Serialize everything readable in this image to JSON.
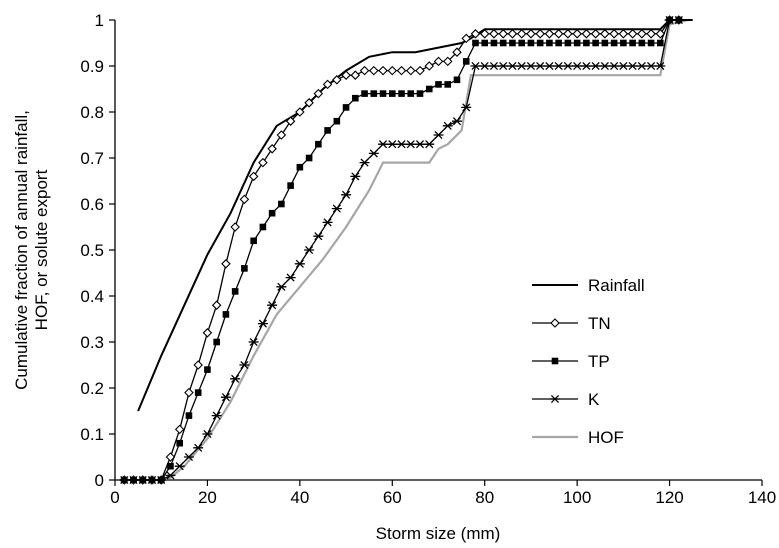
{
  "chart_data": {
    "type": "line",
    "xlabel": "Storm size (mm)",
    "ylabel_lines": [
      "Cumulative fraction of annual rainfall,",
      "HOF, or solute export"
    ],
    "xlim": [
      0,
      140
    ],
    "ylim": [
      0,
      1
    ],
    "xticks": [
      0,
      20,
      40,
      60,
      80,
      100,
      120,
      140
    ],
    "yticks": [
      0,
      0.1,
      0.2,
      0.3,
      0.4,
      0.5,
      0.6,
      0.7,
      0.8,
      0.9,
      1
    ],
    "xtick_labels": [
      "0",
      "20",
      "40",
      "60",
      "80",
      "100",
      "120",
      "140"
    ],
    "ytick_labels": [
      "0",
      "0.1",
      "0.2",
      "0.3",
      "0.4",
      "0.5",
      "0.6",
      "0.7",
      "0.8",
      "0.9",
      "1"
    ],
    "grid": false,
    "legend_position": "right",
    "series": [
      {
        "name": "Rainfall",
        "marker": "none",
        "color": "#000000",
        "x": [
          5,
          10,
          15,
          20,
          25,
          30,
          35,
          40,
          45,
          50,
          55,
          60,
          65,
          70,
          75,
          77,
          80,
          118,
          120,
          125
        ],
        "y": [
          0.15,
          0.27,
          0.38,
          0.49,
          0.58,
          0.69,
          0.77,
          0.8,
          0.85,
          0.89,
          0.92,
          0.93,
          0.93,
          0.94,
          0.95,
          0.96,
          0.98,
          0.98,
          1.0,
          1.0
        ]
      },
      {
        "name": "TN",
        "marker": "diamond",
        "color": "#000000",
        "x": [
          2,
          4,
          6,
          8,
          10,
          12,
          14,
          16,
          18,
          20,
          22,
          24,
          26,
          28,
          30,
          32,
          34,
          36,
          38,
          40,
          42,
          44,
          46,
          48,
          50,
          52,
          54,
          56,
          58,
          60,
          62,
          64,
          66,
          68,
          70,
          72,
          74,
          76,
          78,
          80,
          82,
          84,
          86,
          88,
          90,
          92,
          94,
          96,
          98,
          100,
          102,
          104,
          106,
          108,
          110,
          112,
          114,
          116,
          118,
          120,
          122
        ],
        "y": [
          0,
          0,
          0,
          0,
          0,
          0.05,
          0.11,
          0.19,
          0.25,
          0.32,
          0.38,
          0.47,
          0.55,
          0.61,
          0.66,
          0.69,
          0.72,
          0.75,
          0.78,
          0.8,
          0.82,
          0.84,
          0.86,
          0.87,
          0.88,
          0.88,
          0.89,
          0.89,
          0.89,
          0.89,
          0.89,
          0.89,
          0.89,
          0.9,
          0.91,
          0.91,
          0.93,
          0.96,
          0.97,
          0.97,
          0.97,
          0.97,
          0.97,
          0.97,
          0.97,
          0.97,
          0.97,
          0.97,
          0.97,
          0.97,
          0.97,
          0.97,
          0.97,
          0.97,
          0.97,
          0.97,
          0.97,
          0.97,
          0.97,
          1.0,
          1.0
        ]
      },
      {
        "name": "TP",
        "marker": "square",
        "color": "#000000",
        "x": [
          2,
          4,
          6,
          8,
          10,
          12,
          14,
          16,
          18,
          20,
          22,
          24,
          26,
          28,
          30,
          32,
          34,
          36,
          38,
          40,
          42,
          44,
          46,
          48,
          50,
          52,
          54,
          56,
          58,
          60,
          62,
          64,
          66,
          68,
          70,
          72,
          74,
          76,
          78,
          80,
          82,
          84,
          86,
          88,
          90,
          92,
          94,
          96,
          98,
          100,
          102,
          104,
          106,
          108,
          110,
          112,
          114,
          116,
          118,
          120,
          122
        ],
        "y": [
          0,
          0,
          0,
          0,
          0,
          0.03,
          0.08,
          0.14,
          0.19,
          0.24,
          0.3,
          0.36,
          0.41,
          0.46,
          0.52,
          0.55,
          0.58,
          0.6,
          0.64,
          0.68,
          0.7,
          0.73,
          0.76,
          0.78,
          0.81,
          0.83,
          0.84,
          0.84,
          0.84,
          0.84,
          0.84,
          0.84,
          0.84,
          0.85,
          0.86,
          0.86,
          0.87,
          0.91,
          0.95,
          0.95,
          0.95,
          0.95,
          0.95,
          0.95,
          0.95,
          0.95,
          0.95,
          0.95,
          0.95,
          0.95,
          0.95,
          0.95,
          0.95,
          0.95,
          0.95,
          0.95,
          0.95,
          0.95,
          0.95,
          1.0,
          1.0
        ]
      },
      {
        "name": "K",
        "marker": "asterisk",
        "color": "#000000",
        "x": [
          2,
          4,
          6,
          8,
          10,
          12,
          14,
          16,
          18,
          20,
          22,
          24,
          26,
          28,
          30,
          32,
          34,
          36,
          38,
          40,
          42,
          44,
          46,
          48,
          50,
          52,
          54,
          56,
          58,
          60,
          62,
          64,
          66,
          68,
          70,
          72,
          74,
          76,
          78,
          80,
          82,
          84,
          86,
          88,
          90,
          92,
          94,
          96,
          98,
          100,
          102,
          104,
          106,
          108,
          110,
          112,
          114,
          116,
          118,
          120,
          122
        ],
        "y": [
          0,
          0,
          0,
          0,
          0,
          0.01,
          0.03,
          0.05,
          0.07,
          0.1,
          0.14,
          0.18,
          0.22,
          0.25,
          0.3,
          0.34,
          0.38,
          0.42,
          0.44,
          0.47,
          0.5,
          0.53,
          0.56,
          0.59,
          0.62,
          0.66,
          0.69,
          0.71,
          0.73,
          0.73,
          0.73,
          0.73,
          0.73,
          0.73,
          0.75,
          0.77,
          0.78,
          0.81,
          0.9,
          0.9,
          0.9,
          0.9,
          0.9,
          0.9,
          0.9,
          0.9,
          0.9,
          0.9,
          0.9,
          0.9,
          0.9,
          0.9,
          0.9,
          0.9,
          0.9,
          0.9,
          0.9,
          0.9,
          0.9,
          1.0,
          1.0
        ]
      },
      {
        "name": "HOF",
        "marker": "none",
        "color": "#a6a6a6",
        "x": [
          2,
          10,
          12,
          15,
          20,
          25,
          30,
          35,
          40,
          45,
          50,
          55,
          58,
          68,
          70,
          72,
          75,
          77,
          80,
          118,
          120,
          124
        ],
        "y": [
          0,
          0,
          0.005,
          0.03,
          0.09,
          0.17,
          0.27,
          0.36,
          0.42,
          0.48,
          0.55,
          0.63,
          0.69,
          0.69,
          0.72,
          0.73,
          0.76,
          0.88,
          0.88,
          0.88,
          0.99,
          1.0
        ]
      }
    ]
  }
}
